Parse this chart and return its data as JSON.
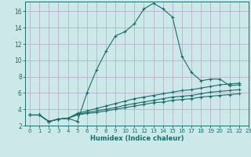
{
  "title": "",
  "xlabel": "Humidex (Indice chaleur)",
  "xlim": [
    -0.5,
    23
  ],
  "ylim": [
    2,
    17.2
  ],
  "bg_color": "#cce8e8",
  "grid_color": "#b8b0c8",
  "line_color": "#1a6e6a",
  "xticks": [
    0,
    1,
    2,
    3,
    4,
    5,
    6,
    7,
    8,
    9,
    10,
    11,
    12,
    13,
    14,
    15,
    16,
    17,
    18,
    19,
    20,
    21,
    22,
    23
  ],
  "yticks": [
    2,
    4,
    6,
    8,
    10,
    12,
    14,
    16
  ],
  "series": [
    [
      3.3,
      3.3,
      2.5,
      2.8,
      2.9,
      2.5,
      6.0,
      8.8,
      11.1,
      13.0,
      13.5,
      14.5,
      16.3,
      17.0,
      16.3,
      15.3,
      10.5,
      8.5,
      7.5,
      7.7,
      7.7,
      6.9,
      7.0
    ],
    [
      3.3,
      3.3,
      2.5,
      2.8,
      2.9,
      3.5,
      3.8,
      4.1,
      4.4,
      4.7,
      5.0,
      5.3,
      5.5,
      5.7,
      5.9,
      6.1,
      6.3,
      6.4,
      6.6,
      6.8,
      7.0,
      7.1,
      7.2
    ],
    [
      3.3,
      3.3,
      2.5,
      2.8,
      2.9,
      3.4,
      3.6,
      3.8,
      4.0,
      4.2,
      4.5,
      4.7,
      4.9,
      5.1,
      5.3,
      5.5,
      5.6,
      5.7,
      5.9,
      6.1,
      6.2,
      6.3,
      6.4
    ],
    [
      3.3,
      3.3,
      2.5,
      2.8,
      2.9,
      3.3,
      3.5,
      3.6,
      3.8,
      4.0,
      4.2,
      4.4,
      4.6,
      4.8,
      4.9,
      5.1,
      5.2,
      5.3,
      5.5,
      5.6,
      5.7,
      5.8,
      5.9
    ]
  ]
}
